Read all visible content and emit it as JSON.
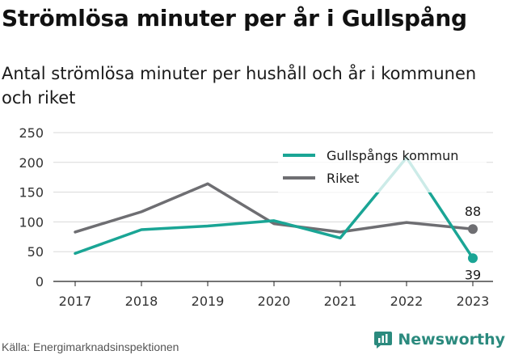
{
  "title": "Strömlösa minuter per år i Gullspång",
  "subtitle": "Antal strömlösa minuter per hushåll och år i kommunen och riket",
  "source": "Källa: Energimarknadsinspektionen",
  "brand": "Newsworthy",
  "colors": {
    "gullspang": "#1aa595",
    "riket": "#6e6e72",
    "grid": "#d9d9d9",
    "text": "#333333",
    "brand": "#2b8a7e"
  },
  "chart_data": {
    "type": "line",
    "x": [
      "2017",
      "2018",
      "2019",
      "2020",
      "2021",
      "2022",
      "2023"
    ],
    "yticks": [
      "0",
      "50",
      "100",
      "150",
      "200",
      "250"
    ],
    "ylim": [
      0,
      250
    ],
    "grid": true,
    "legend": "top-right",
    "series": [
      {
        "name": "Gullspångs kommun",
        "values": [
          47,
          87,
          93,
          102,
          73,
          208,
          39
        ],
        "end_label": "39"
      },
      {
        "name": "Riket",
        "values": [
          83,
          117,
          164,
          97,
          83,
          99,
          88
        ],
        "end_label": "88"
      }
    ]
  }
}
